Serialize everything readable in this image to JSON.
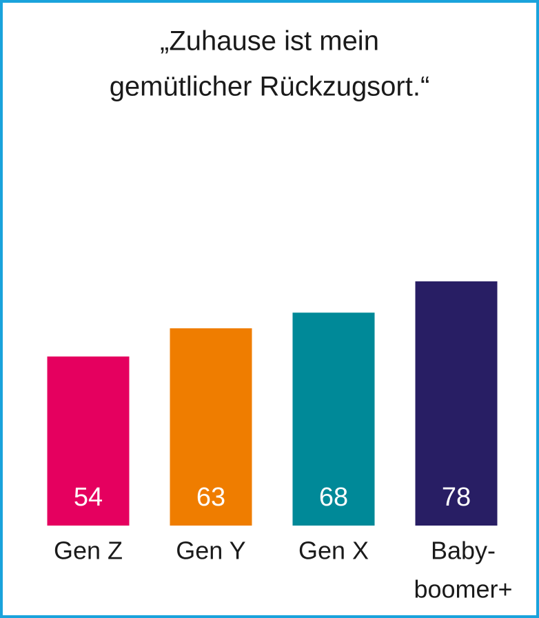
{
  "chart_data": {
    "type": "bar",
    "title": [
      "„Zuhause ist mein",
      "gemütlicher Rückzugsort.“"
    ],
    "categories": [
      [
        "Gen Z"
      ],
      [
        "Gen Y"
      ],
      [
        "Gen X"
      ],
      [
        "Baby-",
        "boomer+"
      ]
    ],
    "values": [
      54,
      63,
      68,
      78
    ],
    "colors": [
      "#e5005f",
      "#ef7d00",
      "#008998",
      "#281e64"
    ],
    "ylim": [
      0,
      100
    ]
  }
}
